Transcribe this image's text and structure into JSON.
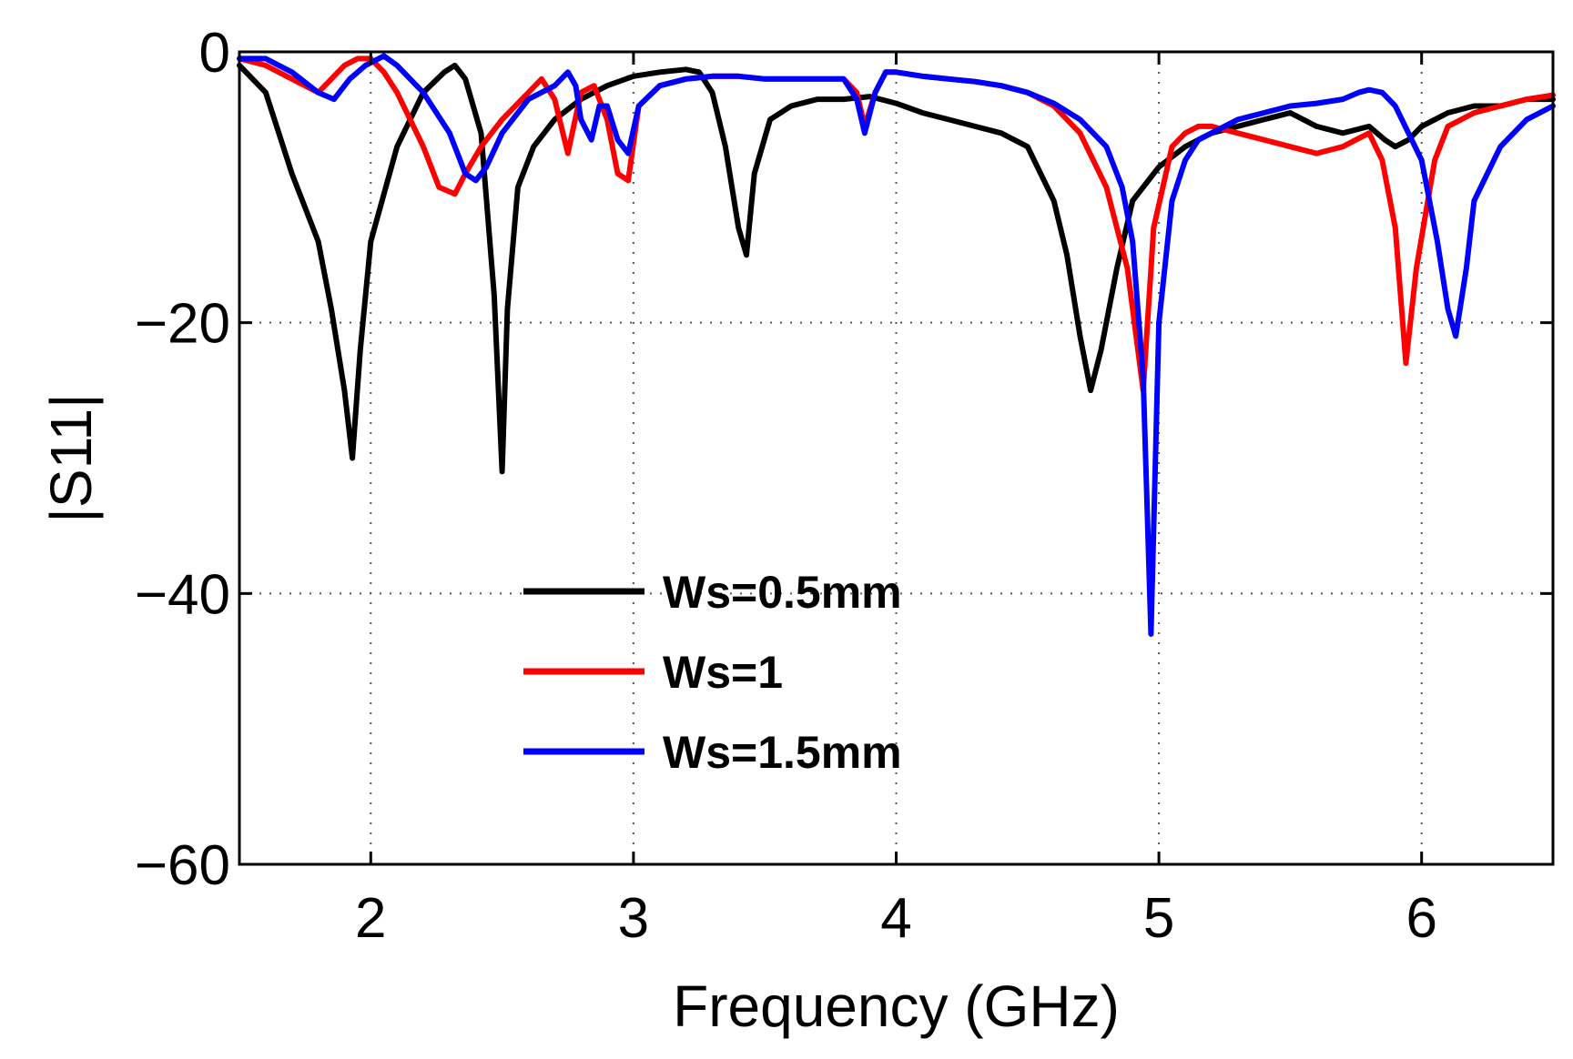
{
  "chart_data": {
    "type": "line",
    "title": "",
    "xlabel": "Frequency (GHz)",
    "ylabel": "|S11|",
    "xlim": [
      1.5,
      6.5
    ],
    "ylim": [
      -60,
      0
    ],
    "xticks": [
      2,
      3,
      4,
      5,
      6
    ],
    "yticks": [
      0,
      -20,
      -40,
      -60
    ],
    "xtick_labels": [
      "2",
      "3",
      "4",
      "5",
      "6"
    ],
    "ytick_labels": [
      "0",
      "−20",
      "−40",
      "−60"
    ],
    "grid": true,
    "legend_position": "lower-center",
    "series": [
      {
        "name": "Ws=0.5mm",
        "color": "#000000",
        "x": [
          1.5,
          1.6,
          1.7,
          1.8,
          1.85,
          1.9,
          1.93,
          1.96,
          2.0,
          2.1,
          2.2,
          2.28,
          2.32,
          2.36,
          2.42,
          2.47,
          2.5,
          2.52,
          2.56,
          2.62,
          2.7,
          2.8,
          2.9,
          3.0,
          3.1,
          3.2,
          3.25,
          3.3,
          3.35,
          3.4,
          3.43,
          3.46,
          3.52,
          3.6,
          3.7,
          3.8,
          3.9,
          4.0,
          4.1,
          4.2,
          4.3,
          4.4,
          4.5,
          4.6,
          4.65,
          4.7,
          4.74,
          4.78,
          4.84,
          4.9,
          5.0,
          5.1,
          5.2,
          5.3,
          5.4,
          5.5,
          5.6,
          5.7,
          5.8,
          5.86,
          5.9,
          5.95,
          6.0,
          6.1,
          6.2,
          6.3,
          6.4,
          6.5
        ],
        "y": [
          -1,
          -3,
          -9,
          -14,
          -19,
          -25,
          -30,
          -22,
          -14,
          -7,
          -3,
          -1.5,
          -1,
          -2,
          -6,
          -18,
          -31,
          -19,
          -10,
          -7,
          -5,
          -3.5,
          -2.5,
          -1.8,
          -1.5,
          -1.3,
          -1.5,
          -3,
          -7,
          -13,
          -15,
          -9,
          -5,
          -4,
          -3.5,
          -3.5,
          -3.3,
          -3.8,
          -4.5,
          -5,
          -5.5,
          -6,
          -7,
          -11,
          -15,
          -21,
          -25,
          -22,
          -16,
          -11,
          -8.5,
          -7,
          -6,
          -5.5,
          -5,
          -4.5,
          -5.5,
          -6,
          -5.5,
          -6.5,
          -7,
          -6.5,
          -5.5,
          -4.5,
          -4,
          -4,
          -3.5,
          -3.5
        ]
      },
      {
        "name": "Ws=1",
        "color": "#ff0000",
        "x": [
          1.5,
          1.6,
          1.7,
          1.8,
          1.85,
          1.9,
          1.95,
          2.0,
          2.05,
          2.1,
          2.2,
          2.26,
          2.32,
          2.36,
          2.42,
          2.5,
          2.6,
          2.65,
          2.7,
          2.75,
          2.8,
          2.85,
          2.9,
          2.94,
          2.98,
          3.02,
          3.1,
          3.2,
          3.3,
          3.4,
          3.5,
          3.6,
          3.7,
          3.8,
          3.85,
          3.88,
          3.92,
          3.96,
          4.0,
          4.1,
          4.2,
          4.3,
          4.4,
          4.5,
          4.6,
          4.7,
          4.8,
          4.88,
          4.94,
          4.98,
          5.05,
          5.1,
          5.15,
          5.2,
          5.3,
          5.4,
          5.5,
          5.6,
          5.7,
          5.75,
          5.8,
          5.85,
          5.9,
          5.94,
          5.98,
          6.05,
          6.1,
          6.2,
          6.3,
          6.4,
          6.5
        ],
        "y": [
          -0.5,
          -1,
          -2,
          -3,
          -2,
          -1,
          -0.5,
          -0.5,
          -1.5,
          -3,
          -7,
          -10,
          -10.5,
          -9,
          -7,
          -5,
          -3,
          -2,
          -3.5,
          -7.5,
          -3,
          -2.5,
          -5,
          -9,
          -9.5,
          -4,
          -2.5,
          -2,
          -1.8,
          -1.8,
          -2,
          -2,
          -2,
          -2,
          -3,
          -5.5,
          -3,
          -1.5,
          -1.5,
          -1.8,
          -2,
          -2.2,
          -2.5,
          -3,
          -4,
          -6,
          -10,
          -16,
          -25,
          -13,
          -7,
          -6,
          -5.5,
          -5.5,
          -6,
          -6.5,
          -7,
          -7.5,
          -7,
          -6.5,
          -6,
          -8,
          -13,
          -23,
          -16,
          -8,
          -5.5,
          -4.5,
          -4,
          -3.5,
          -3.2
        ]
      },
      {
        "name": "Ws=1.5mm",
        "color": "#0000ff",
        "x": [
          1.5,
          1.6,
          1.7,
          1.8,
          1.86,
          1.92,
          1.98,
          2.05,
          2.1,
          2.2,
          2.3,
          2.36,
          2.4,
          2.44,
          2.5,
          2.6,
          2.7,
          2.75,
          2.78,
          2.8,
          2.84,
          2.87,
          2.9,
          2.94,
          2.98,
          3.02,
          3.1,
          3.2,
          3.3,
          3.4,
          3.5,
          3.6,
          3.7,
          3.8,
          3.85,
          3.88,
          3.92,
          3.96,
          4.0,
          4.1,
          4.2,
          4.3,
          4.4,
          4.5,
          4.6,
          4.7,
          4.8,
          4.86,
          4.9,
          4.94,
          4.97,
          5.0,
          5.05,
          5.1,
          5.15,
          5.2,
          5.3,
          5.4,
          5.5,
          5.6,
          5.7,
          5.76,
          5.8,
          5.85,
          5.9,
          6.0,
          6.06,
          6.1,
          6.13,
          6.17,
          6.2,
          6.3,
          6.4,
          6.5
        ],
        "y": [
          -0.5,
          -0.5,
          -1.5,
          -3,
          -3.5,
          -2,
          -1,
          -0.3,
          -1,
          -3,
          -6,
          -9,
          -9.5,
          -8.5,
          -6,
          -3.5,
          -2.5,
          -1.5,
          -2.5,
          -5,
          -6.5,
          -4,
          -4,
          -6.5,
          -7.5,
          -4,
          -2.5,
          -2,
          -1.8,
          -1.8,
          -2,
          -2,
          -2,
          -2,
          -3.5,
          -6,
          -3,
          -1.5,
          -1.5,
          -1.8,
          -2,
          -2.2,
          -2.5,
          -3,
          -3.8,
          -5,
          -7,
          -10,
          -14,
          -24,
          -43,
          -20,
          -11,
          -8,
          -6.5,
          -6,
          -5,
          -4.5,
          -4,
          -3.8,
          -3.5,
          -3,
          -2.8,
          -3,
          -4,
          -8,
          -14,
          -19,
          -21,
          -16,
          -11,
          -7,
          -5,
          -4
        ]
      }
    ]
  }
}
